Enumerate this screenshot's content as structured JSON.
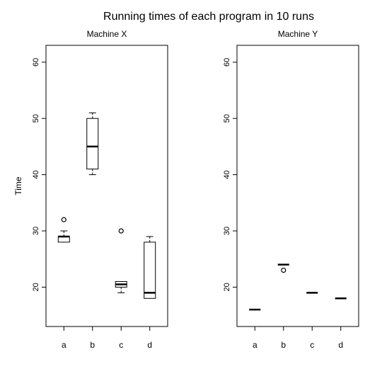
{
  "title": "Running times of each program in 10 runs",
  "chart_data": [
    {
      "type": "boxplot",
      "title": "Machine X",
      "ylabel": "Time",
      "xlabel": "",
      "ylim": [
        13,
        63
      ],
      "yticks": [
        20,
        30,
        40,
        50,
        60
      ],
      "categories": [
        "a",
        "b",
        "c",
        "d"
      ],
      "boxes": [
        {
          "category": "a",
          "whisker_low": 28,
          "q1": 28,
          "median": 29,
          "q3": 29,
          "whisker_high": 30,
          "outliers": [
            32
          ]
        },
        {
          "category": "b",
          "whisker_low": 40,
          "q1": 41,
          "median": 45,
          "q3": 50,
          "whisker_high": 51,
          "outliers": []
        },
        {
          "category": "c",
          "whisker_low": 19,
          "q1": 20,
          "median": 20.5,
          "q3": 21,
          "whisker_high": 21,
          "outliers": [
            30
          ]
        },
        {
          "category": "d",
          "whisker_low": 18,
          "q1": 18,
          "median": 19,
          "q3": 28,
          "whisker_high": 29,
          "outliers": []
        }
      ]
    },
    {
      "type": "boxplot",
      "title": "Machine Y",
      "ylabel": "",
      "xlabel": "",
      "ylim": [
        13,
        63
      ],
      "yticks": [
        20,
        30,
        40,
        50,
        60
      ],
      "categories": [
        "a",
        "b",
        "c",
        "d"
      ],
      "boxes": [
        {
          "category": "a",
          "whisker_low": 16,
          "q1": 16,
          "median": 16,
          "q3": 16,
          "whisker_high": 16,
          "outliers": []
        },
        {
          "category": "b",
          "whisker_low": 24,
          "q1": 24,
          "median": 24,
          "q3": 24,
          "whisker_high": 24,
          "outliers": [
            23
          ]
        },
        {
          "category": "c",
          "whisker_low": 19,
          "q1": 19,
          "median": 19,
          "q3": 19,
          "whisker_high": 19,
          "outliers": []
        },
        {
          "category": "d",
          "whisker_low": 18,
          "q1": 18,
          "median": 18,
          "q3": 18,
          "whisker_high": 18,
          "outliers": []
        }
      ]
    }
  ]
}
